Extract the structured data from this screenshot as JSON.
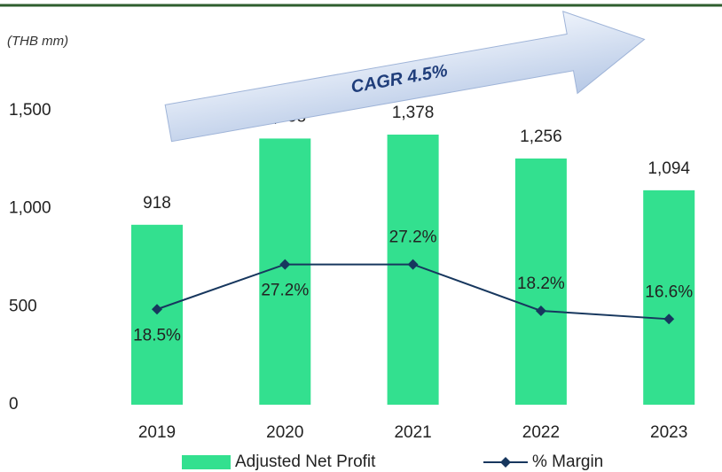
{
  "chart_data": {
    "type": "bar",
    "unit_label": "(THB mm)",
    "annotation": "CAGR 4.5%",
    "categories": [
      "2019",
      "2020",
      "2021",
      "2022",
      "2023"
    ],
    "series": [
      {
        "name": "Adjusted Net Profit",
        "color": "#33e08f",
        "type": "bar",
        "values": [
          918,
          1358,
          1378,
          1256,
          1094
        ],
        "value_labels": [
          "918",
          "1,358",
          "1,378",
          "1,256",
          "1,094"
        ]
      },
      {
        "name": "% Margin",
        "color": "#17375e",
        "type": "line",
        "axis": "y2",
        "values": [
          18.5,
          27.2,
          27.2,
          18.2,
          16.6
        ],
        "value_labels": [
          "18.5%",
          "27.2%",
          "27.2%",
          "18.2%",
          "16.6%"
        ]
      }
    ],
    "ylim": [
      0,
      1500
    ],
    "yticks": [
      0,
      {
        "value": 500,
        "label": "500"
      },
      {
        "value": 1000,
        "label": "1,000"
      },
      {
        "value": 1500,
        "label": "1,500"
      }
    ],
    "y2lim": [
      0,
      57
    ],
    "grid": false,
    "legend": "bottom"
  }
}
